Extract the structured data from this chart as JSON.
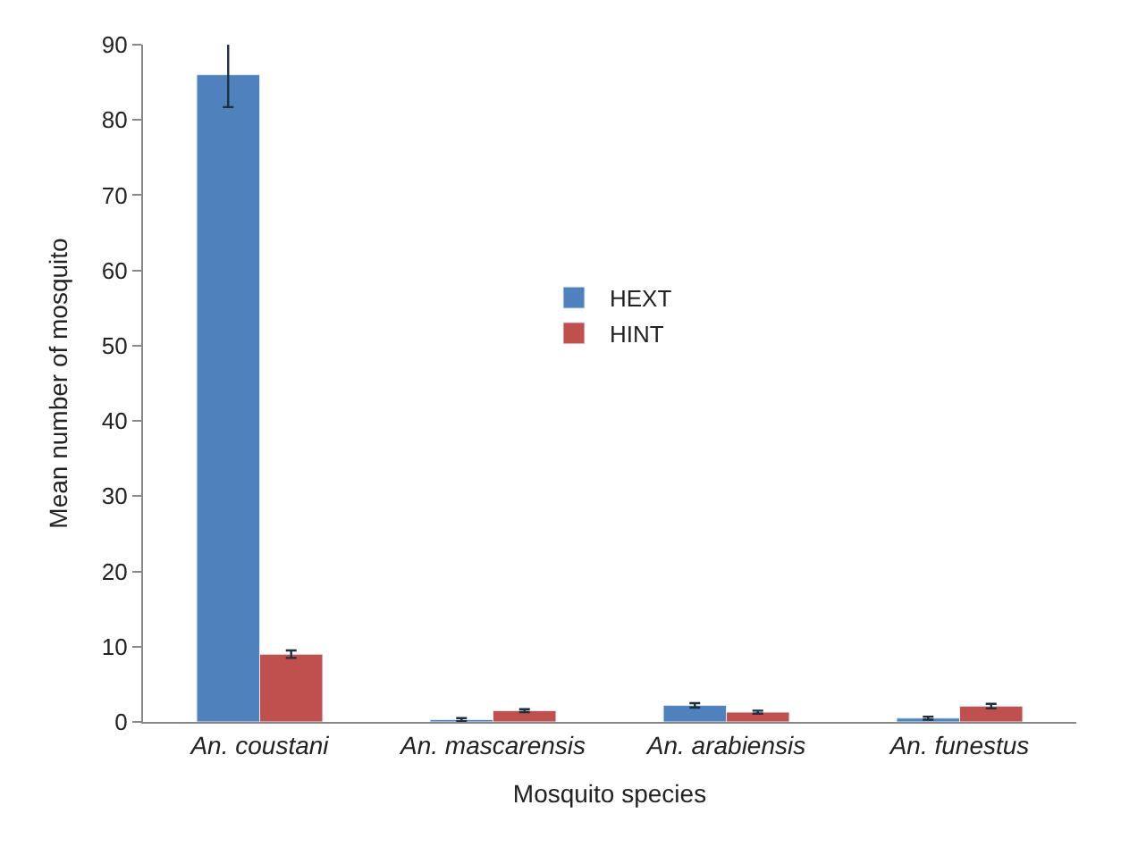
{
  "chart_data": {
    "type": "bar",
    "xlabel": "Mosquito species",
    "ylabel": "Mean number of mosquito",
    "categories": [
      "An. coustani",
      "An. mascarensis",
      "An. arabiensis",
      "An. funestus"
    ],
    "series": [
      {
        "name": "HEXT",
        "color": "#4f81bd",
        "values": [
          86,
          0.3,
          2.2,
          0.5
        ],
        "errors": [
          4.3,
          0.2,
          0.3,
          0.2
        ]
      },
      {
        "name": "HINT",
        "color": "#c0504d",
        "values": [
          9,
          1.5,
          1.3,
          2.1
        ],
        "errors": [
          0.5,
          0.2,
          0.2,
          0.3
        ]
      }
    ],
    "ylim": [
      0,
      90
    ],
    "yticks": [
      0,
      10,
      20,
      30,
      40,
      50,
      60,
      70,
      80,
      90
    ],
    "legend": "center"
  }
}
